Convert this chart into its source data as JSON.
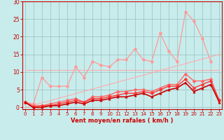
{
  "background_color": "#c8ecec",
  "grid_color": "#a0c8c8",
  "x_label": "Vent moyen/en rafales ( km/h )",
  "x_ticks": [
    0,
    1,
    2,
    3,
    4,
    5,
    6,
    7,
    8,
    9,
    10,
    11,
    12,
    13,
    14,
    15,
    16,
    17,
    18,
    19,
    20,
    21,
    22,
    23
  ],
  "ylim": [
    -0.5,
    30
  ],
  "xlim": [
    -0.3,
    23.3
  ],
  "yticks": [
    0,
    5,
    10,
    15,
    20,
    25,
    30
  ],
  "lines": [
    {
      "color": "#ffaaaa",
      "lw": 0.8,
      "marker": null,
      "y": [
        10.5,
        10.5,
        10.5,
        10.5,
        10.5,
        10.5,
        10.5,
        10.5,
        10.5,
        10.5,
        10.5,
        10.5,
        10.5,
        10.5,
        10.5,
        10.5,
        10.5,
        10.5,
        10.5,
        10.5,
        10.5,
        10.5,
        10.5,
        10.5
      ]
    },
    {
      "color": "#ffaaaa",
      "lw": 0.8,
      "marker": null,
      "y": [
        0.0,
        0.65,
        1.3,
        1.96,
        2.61,
        3.26,
        3.91,
        4.57,
        5.22,
        5.87,
        6.52,
        7.17,
        7.83,
        8.48,
        9.13,
        9.78,
        10.43,
        11.09,
        11.74,
        12.39,
        13.04,
        13.7,
        14.35,
        15.0
      ]
    },
    {
      "color": "#ff9999",
      "lw": 0.9,
      "marker": "D",
      "markersize": 2.5,
      "y": [
        1.5,
        1.0,
        8.5,
        6.0,
        6.0,
        6.0,
        11.5,
        8.5,
        13.0,
        12.0,
        11.5,
        13.5,
        13.5,
        16.5,
        13.5,
        13.0,
        21.0,
        16.0,
        13.0,
        27.0,
        24.5,
        19.5,
        13.0,
        null
      ]
    },
    {
      "color": "#ff6666",
      "lw": 1.0,
      "marker": "D",
      "markersize": 2.5,
      "y": [
        1.5,
        0.5,
        0.5,
        1.0,
        1.5,
        2.0,
        2.5,
        1.5,
        3.0,
        3.0,
        3.5,
        4.5,
        4.5,
        5.0,
        5.0,
        4.5,
        5.5,
        6.5,
        6.5,
        9.5,
        7.5,
        7.5,
        8.0,
        2.0
      ]
    },
    {
      "color": "#ff3333",
      "lw": 1.0,
      "marker": "D",
      "markersize": 2.5,
      "y": [
        1.5,
        0.0,
        0.5,
        0.5,
        1.0,
        1.5,
        2.0,
        1.5,
        2.5,
        2.5,
        3.0,
        3.5,
        4.0,
        4.0,
        4.5,
        4.0,
        5.0,
        6.0,
        6.0,
        8.0,
        5.5,
        6.5,
        7.5,
        2.0
      ]
    },
    {
      "color": "#cc0000",
      "lw": 1.2,
      "marker": "^",
      "markersize": 2.5,
      "y": [
        1.5,
        0.0,
        0.0,
        0.5,
        0.5,
        1.0,
        1.5,
        1.0,
        2.0,
        2.0,
        2.5,
        3.0,
        3.0,
        3.5,
        4.0,
        3.0,
        4.0,
        5.0,
        5.5,
        7.0,
        4.5,
        5.5,
        6.5,
        1.5
      ]
    }
  ]
}
